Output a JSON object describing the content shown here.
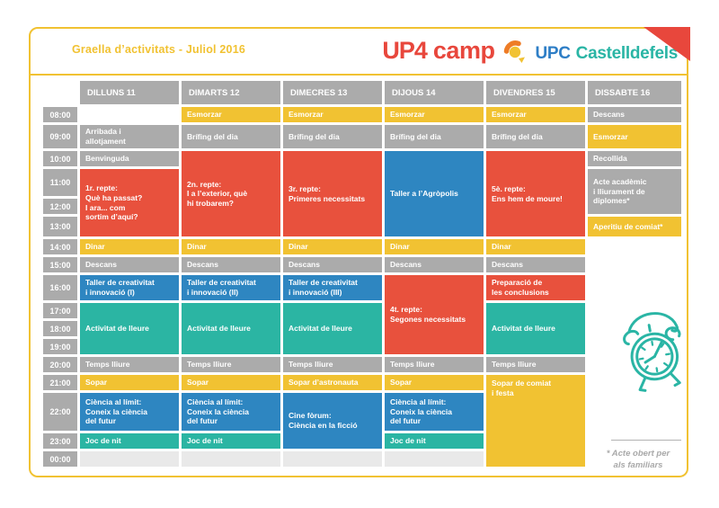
{
  "header": {
    "title": "Graella d’activitats - Juliol 2016",
    "logo": {
      "up4": "UP4",
      "camp": "camp",
      "upc": "UPC",
      "city": "Castelldefels"
    }
  },
  "colors": {
    "frame": "#F1C232",
    "yellow": "#F1C232",
    "gray": "#ABABAB",
    "red": "#E8513D",
    "blue": "#2E86C1",
    "teal": "#2BB5A3",
    "light": "#E9E9E9",
    "logo_red": "#E8473C",
    "logo_blue": "#2E7EC6",
    "logo_teal": "#2AB5A5",
    "logo_orange": "#EE7C26",
    "footnote_gray": "#A9A9A9"
  },
  "schedule": {
    "days": [
      "DILLUNS 11",
      "DIMARTS 12",
      "DIMECRES 13",
      "DIJOUS 14",
      "DIVENDRES 15",
      "DISSABTE 16"
    ],
    "times": [
      "08:00",
      "09:00",
      "10:00",
      "11:00",
      "12:00",
      "13:00",
      "14:00",
      "15:00",
      "16:00",
      "17:00",
      "18:00",
      "19:00",
      "20:00",
      "21:00",
      "22:00",
      "23:00",
      "00:00"
    ],
    "cells": [
      {
        "col": 0,
        "row": 1,
        "span": 1,
        "color": "gray",
        "text": "Arribada i\nallotjament"
      },
      {
        "col": 0,
        "row": 2,
        "span": 1,
        "color": "gray",
        "text": "Benvinguda"
      },
      {
        "col": 0,
        "row": 3,
        "span": 3,
        "color": "red",
        "text": "1r. repte:\nQuè ha passat?\nI ara... com\nsortim d’aquí?"
      },
      {
        "col": 0,
        "row": 6,
        "span": 1,
        "color": "yellow",
        "text": "Dinar"
      },
      {
        "col": 0,
        "row": 7,
        "span": 1,
        "color": "gray",
        "text": "Descans"
      },
      {
        "col": 0,
        "row": 8,
        "span": 1,
        "color": "blue",
        "text": "Taller de creativitat\ni innovació (I)"
      },
      {
        "col": 0,
        "row": 9,
        "span": 3,
        "color": "teal",
        "text": "Activitat de lleure"
      },
      {
        "col": 0,
        "row": 12,
        "span": 1,
        "color": "gray",
        "text": "Temps lliure"
      },
      {
        "col": 0,
        "row": 13,
        "span": 1,
        "color": "yellow",
        "text": "Sopar"
      },
      {
        "col": 0,
        "row": 14,
        "span": 1,
        "color": "blue",
        "text": "Ciència al límit:\nConeix la ciència\ndel futur"
      },
      {
        "col": 0,
        "row": 15,
        "span": 1,
        "color": "teal",
        "text": "Joc de nit"
      },
      {
        "col": 0,
        "row": 16,
        "span": 1,
        "color": "light",
        "text": ""
      },
      {
        "col": 1,
        "row": 0,
        "span": 1,
        "color": "yellow",
        "text": "Esmorzar"
      },
      {
        "col": 1,
        "row": 1,
        "span": 1,
        "color": "gray",
        "text": "Brífing del dia"
      },
      {
        "col": 1,
        "row": 2,
        "span": 4,
        "color": "red",
        "text": "2n. repte:\nI a l’exterior, què\nhi trobarem?"
      },
      {
        "col": 1,
        "row": 6,
        "span": 1,
        "color": "yellow",
        "text": "Dinar"
      },
      {
        "col": 1,
        "row": 7,
        "span": 1,
        "color": "gray",
        "text": "Descans"
      },
      {
        "col": 1,
        "row": 8,
        "span": 1,
        "color": "blue",
        "text": "Taller de creativitat\ni innovació (II)"
      },
      {
        "col": 1,
        "row": 9,
        "span": 3,
        "color": "teal",
        "text": "Activitat de lleure"
      },
      {
        "col": 1,
        "row": 12,
        "span": 1,
        "color": "gray",
        "text": "Temps lliure"
      },
      {
        "col": 1,
        "row": 13,
        "span": 1,
        "color": "yellow",
        "text": "Sopar"
      },
      {
        "col": 1,
        "row": 14,
        "span": 1,
        "color": "blue",
        "text": "Ciència al límit:\nConeix la ciència\ndel futur"
      },
      {
        "col": 1,
        "row": 15,
        "span": 1,
        "color": "teal",
        "text": "Joc de nit"
      },
      {
        "col": 1,
        "row": 16,
        "span": 1,
        "color": "light",
        "text": ""
      },
      {
        "col": 2,
        "row": 0,
        "span": 1,
        "color": "yellow",
        "text": "Esmorzar"
      },
      {
        "col": 2,
        "row": 1,
        "span": 1,
        "color": "gray",
        "text": "Brífing del dia"
      },
      {
        "col": 2,
        "row": 2,
        "span": 4,
        "color": "red",
        "text": "3r. repte:\nPrimeres necessitats"
      },
      {
        "col": 2,
        "row": 6,
        "span": 1,
        "color": "yellow",
        "text": "Dinar"
      },
      {
        "col": 2,
        "row": 7,
        "span": 1,
        "color": "gray",
        "text": "Descans"
      },
      {
        "col": 2,
        "row": 8,
        "span": 1,
        "color": "blue",
        "text": "Taller de creativitat\ni innovació (III)"
      },
      {
        "col": 2,
        "row": 9,
        "span": 3,
        "color": "teal",
        "text": "Activitat de lleure"
      },
      {
        "col": 2,
        "row": 12,
        "span": 1,
        "color": "gray",
        "text": "Temps lliure"
      },
      {
        "col": 2,
        "row": 13,
        "span": 1,
        "color": "yellow",
        "text": "Sopar d’astronauta"
      },
      {
        "col": 2,
        "row": 14,
        "span": 2,
        "color": "blue",
        "text": "Cine fòrum:\nCiència en la ficció"
      },
      {
        "col": 2,
        "row": 16,
        "span": 1,
        "color": "light",
        "text": ""
      },
      {
        "col": 3,
        "row": 0,
        "span": 1,
        "color": "yellow",
        "text": "Esmorzar"
      },
      {
        "col": 3,
        "row": 1,
        "span": 1,
        "color": "gray",
        "text": "Brífing del dia"
      },
      {
        "col": 3,
        "row": 2,
        "span": 4,
        "color": "blue",
        "text": "Taller a l’Agròpolis"
      },
      {
        "col": 3,
        "row": 6,
        "span": 1,
        "color": "yellow",
        "text": "Dinar"
      },
      {
        "col": 3,
        "row": 7,
        "span": 1,
        "color": "gray",
        "text": "Descans"
      },
      {
        "col": 3,
        "row": 8,
        "span": 4,
        "color": "red",
        "text": "4t. repte:\nSegones necessitats"
      },
      {
        "col": 3,
        "row": 12,
        "span": 1,
        "color": "gray",
        "text": "Temps lliure"
      },
      {
        "col": 3,
        "row": 13,
        "span": 1,
        "color": "yellow",
        "text": "Sopar"
      },
      {
        "col": 3,
        "row": 14,
        "span": 1,
        "color": "blue",
        "text": "Ciència al límit:\nConeix la ciència\ndel futur"
      },
      {
        "col": 3,
        "row": 15,
        "span": 1,
        "color": "teal",
        "text": "Joc de nit"
      },
      {
        "col": 3,
        "row": 16,
        "span": 1,
        "color": "light",
        "text": ""
      },
      {
        "col": 4,
        "row": 0,
        "span": 1,
        "color": "yellow",
        "text": "Esmorzar"
      },
      {
        "col": 4,
        "row": 1,
        "span": 1,
        "color": "gray",
        "text": "Brífing del dia"
      },
      {
        "col": 4,
        "row": 2,
        "span": 4,
        "color": "red",
        "text": "5è. repte:\nEns hem de moure!"
      },
      {
        "col": 4,
        "row": 6,
        "span": 1,
        "color": "yellow",
        "text": "Dinar"
      },
      {
        "col": 4,
        "row": 7,
        "span": 1,
        "color": "gray",
        "text": "Descans"
      },
      {
        "col": 4,
        "row": 8,
        "span": 1,
        "color": "red",
        "text": "Preparació de\nles conclusions"
      },
      {
        "col": 4,
        "row": 9,
        "span": 3,
        "color": "teal",
        "text": "Activitat de lleure"
      },
      {
        "col": 4,
        "row": 12,
        "span": 1,
        "color": "gray",
        "text": "Temps lliure"
      },
      {
        "col": 4,
        "row": 13,
        "span": 4,
        "color": "yellow",
        "align": "top",
        "text": "Sopar de comiat\ni festa"
      },
      {
        "col": 5,
        "row": 0,
        "span": 1,
        "color": "gray",
        "text": "Descans"
      },
      {
        "col": 5,
        "row": 1,
        "span": 1,
        "color": "yellow",
        "text": "Esmorzar"
      },
      {
        "col": 5,
        "row": 2,
        "span": 1,
        "color": "gray",
        "text": "Recollida"
      },
      {
        "col": 5,
        "row": 3,
        "span": 2,
        "color": "gray",
        "text": "Acte acadèmic\ni lliurament de\ndiplomes*"
      },
      {
        "col": 5,
        "row": 5,
        "span": 1,
        "color": "yellow",
        "text": "Aperitiu de comiat*"
      }
    ]
  },
  "footnote": {
    "line1": "* Acte obert per",
    "line2": "als familiars"
  }
}
